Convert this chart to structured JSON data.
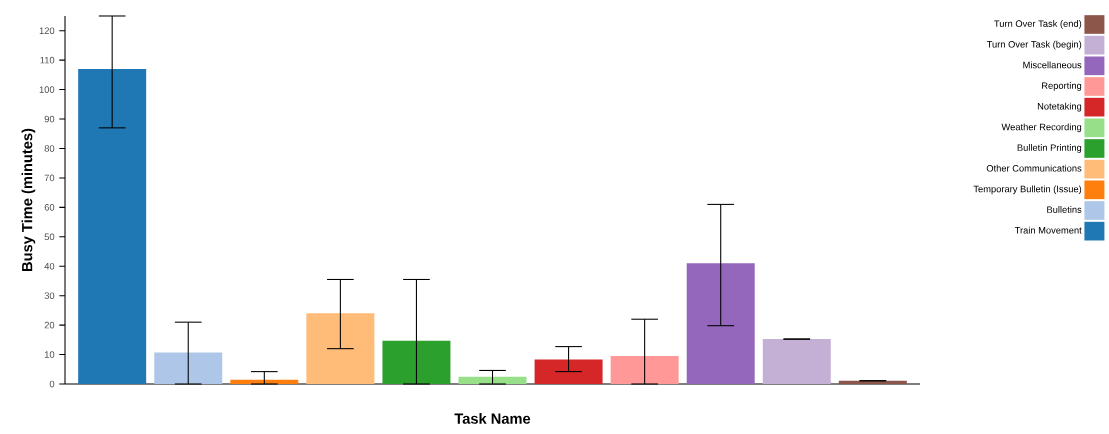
{
  "chart_data": {
    "type": "bar",
    "xlabel": "Task Name",
    "ylabel": "Busy Time (minutes)",
    "categories": [
      null,
      null,
      null,
      null,
      null,
      null,
      null,
      null,
      null,
      null,
      null
    ],
    "series": [
      {
        "name": "Train Movement",
        "color": "#1f77b4",
        "values": [
          107,
          null,
          null,
          null,
          null,
          null,
          null,
          null,
          null,
          null,
          null
        ],
        "errors": [
          [
            87,
            125
          ],
          null,
          null,
          null,
          null,
          null,
          null,
          null,
          null,
          null,
          null
        ]
      },
      {
        "name": "Bulletins",
        "color": "#aec7e8",
        "values": [
          null,
          10.7,
          null,
          null,
          null,
          null,
          null,
          null,
          null,
          null,
          null
        ],
        "errors": [
          null,
          [
            0,
            21
          ],
          null,
          null,
          null,
          null,
          null,
          null,
          null,
          null,
          null
        ]
      },
      {
        "name": "Temporary Bulletin (Issue)",
        "color": "#ff7f0e",
        "values": [
          null,
          null,
          1.4,
          null,
          null,
          null,
          null,
          null,
          null,
          null,
          null
        ],
        "errors": [
          null,
          null,
          [
            0,
            4.2
          ],
          null,
          null,
          null,
          null,
          null,
          null,
          null,
          null
        ]
      },
      {
        "name": "Other Communications",
        "color": "#ffbb78",
        "values": [
          null,
          null,
          null,
          24,
          null,
          null,
          null,
          null,
          null,
          null,
          null
        ],
        "errors": [
          null,
          null,
          null,
          [
            12,
            35.5
          ],
          null,
          null,
          null,
          null,
          null,
          null,
          null
        ]
      },
      {
        "name": "Bulletin Printing",
        "color": "#2ca02c",
        "values": [
          null,
          null,
          null,
          null,
          14.7,
          null,
          null,
          null,
          null,
          null,
          null
        ],
        "errors": [
          null,
          null,
          null,
          null,
          [
            0,
            35.5
          ],
          null,
          null,
          null,
          null,
          null,
          null
        ]
      },
      {
        "name": "Weather Recording",
        "color": "#98df8a",
        "values": [
          null,
          null,
          null,
          null,
          null,
          2.5,
          null,
          null,
          null,
          null,
          null
        ],
        "errors": [
          null,
          null,
          null,
          null,
          null,
          [
            0,
            4.6
          ],
          null,
          null,
          null,
          null,
          null
        ]
      },
      {
        "name": "Notetaking",
        "color": "#d62728",
        "values": [
          null,
          null,
          null,
          null,
          null,
          null,
          8.3,
          null,
          null,
          null,
          null
        ],
        "errors": [
          null,
          null,
          null,
          null,
          null,
          null,
          [
            4.2,
            12.7
          ],
          null,
          null,
          null,
          null
        ]
      },
      {
        "name": "Reporting",
        "color": "#ff9896",
        "values": [
          null,
          null,
          null,
          null,
          null,
          null,
          null,
          9.5,
          null,
          null,
          null
        ],
        "errors": [
          null,
          null,
          null,
          null,
          null,
          null,
          null,
          [
            0,
            22
          ],
          null,
          null,
          null
        ]
      },
      {
        "name": "Miscellaneous",
        "color": "#9467bd",
        "values": [
          null,
          null,
          null,
          null,
          null,
          null,
          null,
          null,
          41,
          null,
          null
        ],
        "errors": [
          null,
          null,
          null,
          null,
          null,
          null,
          null,
          null,
          [
            19.8,
            61
          ],
          null,
          null
        ]
      },
      {
        "name": "Turn Over Task (begin)",
        "color": "#c5b0d5",
        "values": [
          null,
          null,
          null,
          null,
          null,
          null,
          null,
          null,
          null,
          15.3,
          null
        ],
        "errors": [
          null,
          null,
          null,
          null,
          null,
          null,
          null,
          null,
          null,
          [
            15.2,
            15.3
          ],
          null
        ]
      },
      {
        "name": "Turn Over Task (end)",
        "color": "#8c564b",
        "values": [
          null,
          null,
          null,
          null,
          null,
          null,
          null,
          null,
          null,
          null,
          1.1
        ],
        "errors": [
          null,
          null,
          null,
          null,
          null,
          null,
          null,
          null,
          null,
          null,
          [
            1.1,
            1.1
          ]
        ]
      }
    ],
    "ylim": [
      0,
      125
    ],
    "yticks": [
      0,
      10,
      20,
      30,
      40,
      50,
      60,
      70,
      80,
      90,
      100,
      110,
      120
    ],
    "legend": "right"
  }
}
